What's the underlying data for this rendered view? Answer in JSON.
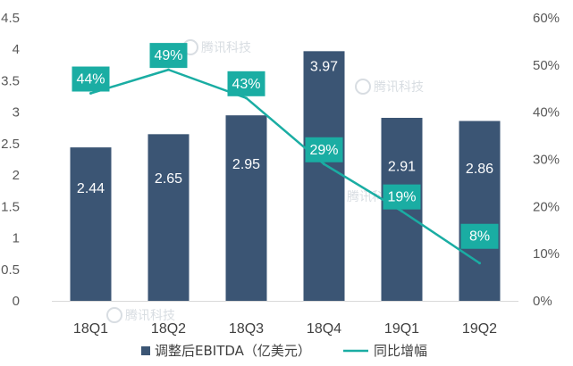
{
  "chart_data": {
    "type": "bar+line",
    "categories": [
      "18Q1",
      "18Q2",
      "18Q3",
      "18Q4",
      "19Q1",
      "19Q2"
    ],
    "series": [
      {
        "name": "调整后EBITDA（亿美元）",
        "type": "bar",
        "axis": "left",
        "values": [
          2.44,
          2.65,
          2.95,
          3.97,
          2.91,
          2.86
        ],
        "labels": [
          "2.44",
          "2.65",
          "2.95",
          "3.97",
          "2.91",
          "2.86"
        ]
      },
      {
        "name": "同比增幅",
        "type": "line",
        "axis": "right",
        "values": [
          44,
          49,
          43,
          29,
          19,
          8
        ],
        "labels": [
          "44%",
          "49%",
          "43%",
          "29%",
          "19%",
          "8%"
        ]
      }
    ],
    "y_left": {
      "min": 0,
      "max": 4.5,
      "ticks": [
        "0",
        "0.5",
        "1",
        "1.5",
        "2",
        "2.5",
        "3",
        "3.5",
        "4",
        "4.5"
      ]
    },
    "y_right": {
      "min": 0,
      "max": 60,
      "ticks": [
        "0%",
        "10%",
        "20%",
        "30%",
        "40%",
        "50%",
        "60%"
      ]
    },
    "legend_position": "bottom",
    "grid": false,
    "colors": {
      "bar": "#3b5574",
      "line": "#1aada3",
      "label_box": "#1aada3",
      "watermark": "#d8dde2"
    },
    "watermark": "腾讯科技"
  }
}
